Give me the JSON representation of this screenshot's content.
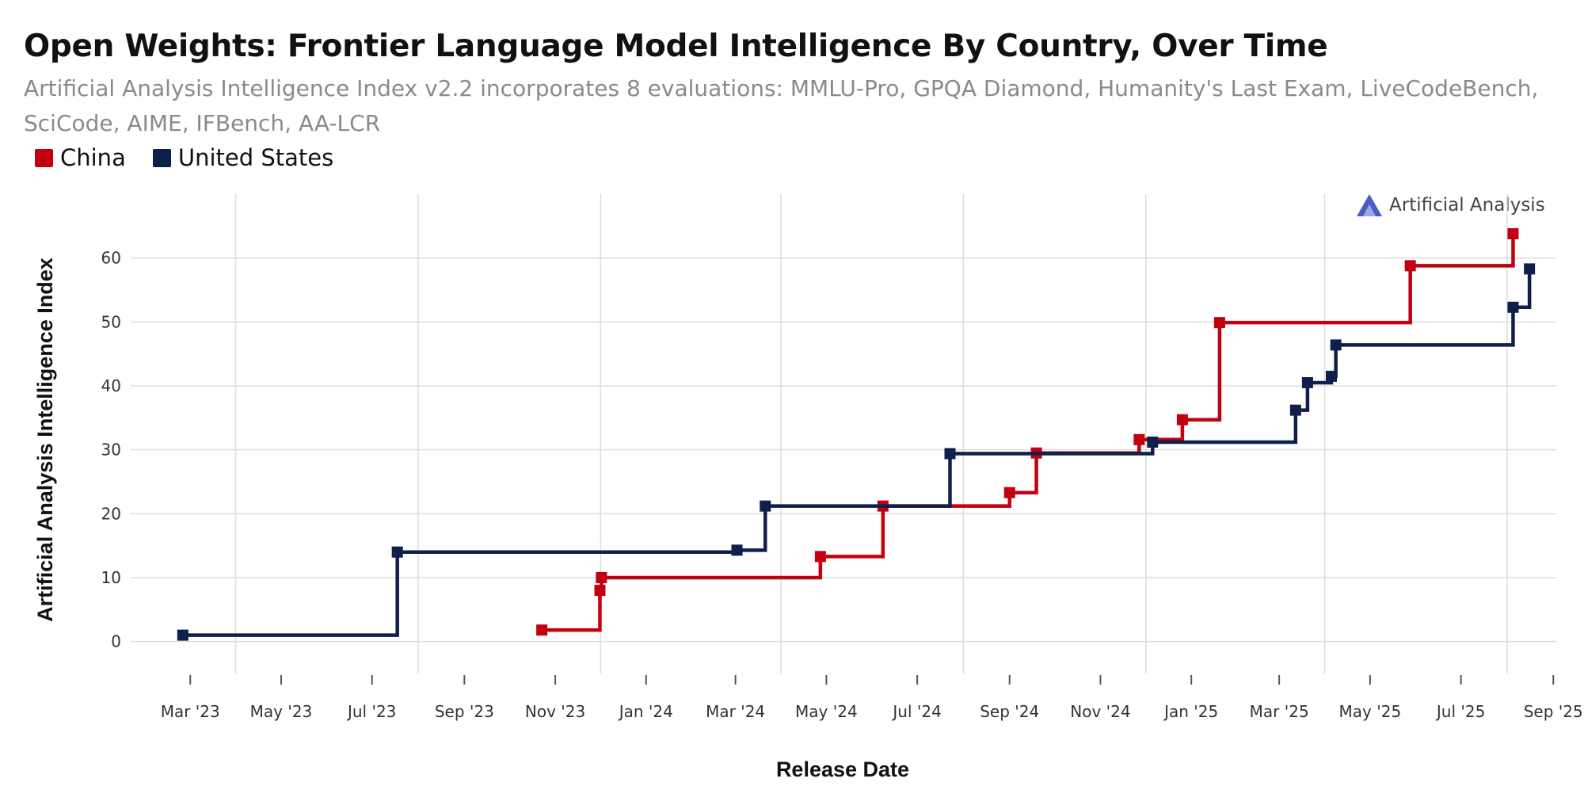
{
  "title": "Open Weights: Frontier Language Model Intelligence By Country, Over Time",
  "subtitle": "Artificial Analysis Intelligence Index v2.2 incorporates 8 evaluations: MMLU-Pro, GPQA Diamond, Humanity's Last Exam, LiveCodeBench, SciCode, AIME, IFBench, AA-LCR",
  "brand": {
    "name": "Artificial Analysis",
    "icon": "artificial-analysis-logo-icon",
    "color": "#4a5bc4"
  },
  "chart_data": {
    "type": "line",
    "step": true,
    "xlabel": "Release Date",
    "ylabel": "Artificial Analysis Intelligence Index",
    "ylim": [
      -5,
      70
    ],
    "y_ticks": [
      0,
      10,
      20,
      30,
      40,
      50,
      60
    ],
    "x_ticks": [
      {
        "date": "2023-03-01",
        "label": "Mar '23"
      },
      {
        "date": "2023-05-01",
        "label": "May '23"
      },
      {
        "date": "2023-07-01",
        "label": "Jul '23"
      },
      {
        "date": "2023-09-01",
        "label": "Sep '23"
      },
      {
        "date": "2023-11-01",
        "label": "Nov '23"
      },
      {
        "date": "2024-01-01",
        "label": "Jan '24"
      },
      {
        "date": "2024-03-01",
        "label": "Mar '24"
      },
      {
        "date": "2024-05-01",
        "label": "May '24"
      },
      {
        "date": "2024-07-01",
        "label": "Jul '24"
      },
      {
        "date": "2024-09-01",
        "label": "Sep '24"
      },
      {
        "date": "2024-11-01",
        "label": "Nov '24"
      },
      {
        "date": "2025-01-01",
        "label": "Jan '25"
      },
      {
        "date": "2025-03-01",
        "label": "Mar '25"
      },
      {
        "date": "2025-05-01",
        "label": "May '25"
      },
      {
        "date": "2025-07-01",
        "label": "Jul '25"
      },
      {
        "date": "2025-09-01",
        "label": "Sep '25"
      }
    ],
    "xlim": [
      "2023-01-20",
      "2025-09-03"
    ],
    "grid": true,
    "legend_position": "top-left",
    "series": [
      {
        "name": "China",
        "color": "#c3000f",
        "points": [
          {
            "x": "2023-10-23",
            "y": 1.8
          },
          {
            "x": "2023-12-01",
            "y": 8.0
          },
          {
            "x": "2023-12-02",
            "y": 10.0
          },
          {
            "x": "2024-04-27",
            "y": 13.3
          },
          {
            "x": "2024-06-08",
            "y": 21.2
          },
          {
            "x": "2024-09-01",
            "y": 23.3
          },
          {
            "x": "2024-09-19",
            "y": 29.5
          },
          {
            "x": "2024-11-27",
            "y": 31.6
          },
          {
            "x": "2024-12-26",
            "y": 34.7
          },
          {
            "x": "2025-01-20",
            "y": 49.9
          },
          {
            "x": "2025-05-28",
            "y": 58.8
          },
          {
            "x": "2025-08-05",
            "y": 63.8
          }
        ],
        "end_x": "2025-08-05"
      },
      {
        "name": "United States",
        "color": "#0f1f4b",
        "points": [
          {
            "x": "2023-02-24",
            "y": 1.0
          },
          {
            "x": "2023-07-18",
            "y": 14.0
          },
          {
            "x": "2024-03-02",
            "y": 14.3
          },
          {
            "x": "2024-03-21",
            "y": 21.2
          },
          {
            "x": "2024-07-23",
            "y": 29.4
          },
          {
            "x": "2024-12-06",
            "y": 31.2
          },
          {
            "x": "2025-03-12",
            "y": 36.2
          },
          {
            "x": "2025-03-20",
            "y": 40.5
          },
          {
            "x": "2025-04-05",
            "y": 41.5
          },
          {
            "x": "2025-04-08",
            "y": 46.4
          },
          {
            "x": "2025-08-05",
            "y": 52.3
          },
          {
            "x": "2025-08-16",
            "y": 58.3
          }
        ],
        "end_x": "2025-08-16"
      }
    ]
  }
}
